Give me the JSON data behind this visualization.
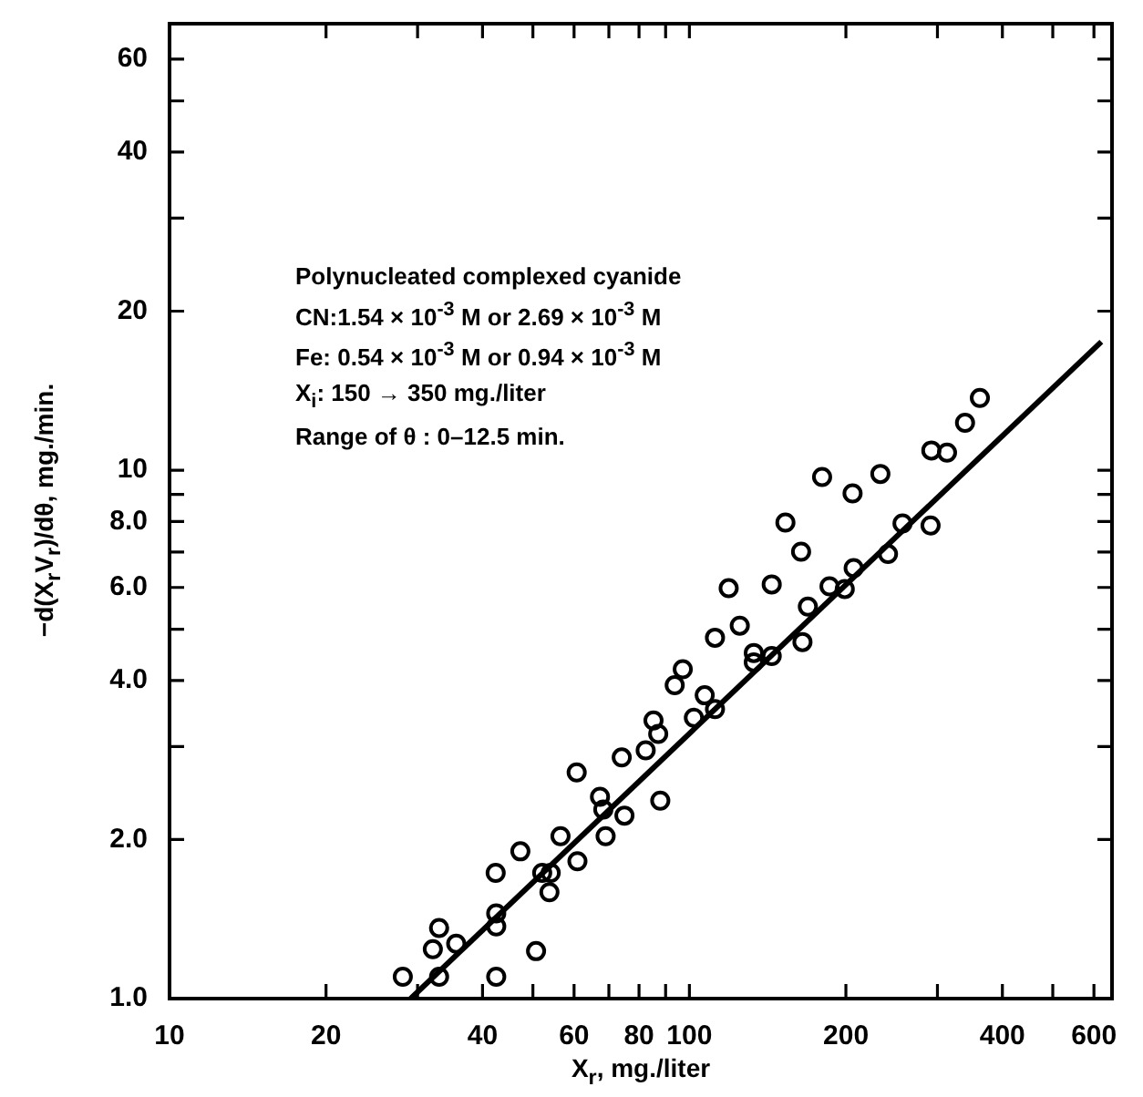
{
  "chart_data": {
    "type": "scatter",
    "xlabel": "X$_{r}$, mg./liter",
    "ylabel": "−d(X$_{r}$V$_{r}$)/dθ, mg./min.",
    "annotations": [
      "Polynucleated complexed cyanide",
      "CN:1.54 × 10$^{-3}$ M or 2.69 × 10$^{-3}$ M",
      "Fe: 0.54 × 10$^{-3}$ M or 0.94 × 10$^{-3}$ M",
      "X$_{i}$: 150 → 350 mg./liter",
      "Range of θ : 0–12.5 min."
    ],
    "log": "xy",
    "grid": false,
    "legend": false,
    "xlim": [
      10,
      650
    ],
    "ylim": [
      1,
      70
    ],
    "xticks": [
      10,
      20,
      {
        "value": 30,
        "label": null
      },
      40,
      {
        "value": 50,
        "label": null
      },
      60,
      {
        "value": 70,
        "label": null
      },
      80,
      {
        "value": 90,
        "label": null
      },
      100,
      200,
      {
        "value": 300,
        "label": null
      },
      400,
      {
        "value": 500,
        "label": null
      },
      600
    ],
    "yticks": [
      {
        "value": 1,
        "label": "1.0"
      },
      {
        "value": 2,
        "label": "2.0"
      },
      {
        "value": 3,
        "label": null
      },
      {
        "value": 4,
        "label": "4.0"
      },
      {
        "value": 5,
        "label": null
      },
      {
        "value": 6,
        "label": "6.0"
      },
      {
        "value": 7,
        "label": null
      },
      {
        "value": 8,
        "label": "8.0"
      },
      {
        "value": 9,
        "label": null
      },
      10,
      20,
      {
        "value": 30,
        "label": null
      },
      40,
      {
        "value": 50,
        "label": null
      },
      60
    ],
    "series": [
      {
        "color": "#000000",
        "marker": "circle",
        "x": [
          28.1,
          33.0,
          33.0,
          32.1,
          35.6,
          42.5,
          42.5,
          42.5,
          42.4,
          50.7,
          47.3,
          52.1,
          54.1,
          53.8,
          56.5,
          60.9,
          60.7,
          67.3,
          68.3,
          69.0,
          75.0,
          87.9,
          74.1,
          82.4,
          85.3,
          87.1,
          93.7,
          97.1,
          102,
          107,
          112,
          112,
          125,
          133,
          133,
          144,
          165,
          169,
          119,
          144,
          164,
          153,
          180,
          186,
          199,
          207,
          206,
          233,
          241,
          257,
          291,
          292,
          313,
          339,
          362
        ],
        "values": [
          1.1,
          1.1,
          1.36,
          1.24,
          1.27,
          1.1,
          1.37,
          1.45,
          1.73,
          1.23,
          1.9,
          1.73,
          1.73,
          1.59,
          2.03,
          1.82,
          2.68,
          2.41,
          2.28,
          2.03,
          2.22,
          2.37,
          2.86,
          2.95,
          3.36,
          3.17,
          3.92,
          4.2,
          3.4,
          3.75,
          3.53,
          4.82,
          5.08,
          4.51,
          4.33,
          4.45,
          4.73,
          5.52,
          5.98,
          6.08,
          7.01,
          7.96,
          9.71,
          6.03,
          5.96,
          6.53,
          9.04,
          9.84,
          6.94,
          7.93,
          7.86,
          10.9,
          10.8,
          12.3,
          13.7
        ]
      },
      {
        "type": "line",
        "color": "#000000",
        "line_style": "solid",
        "x": [
          29.1,
          620
        ],
        "values": [
          1.0,
          17.5
        ]
      }
    ]
  }
}
